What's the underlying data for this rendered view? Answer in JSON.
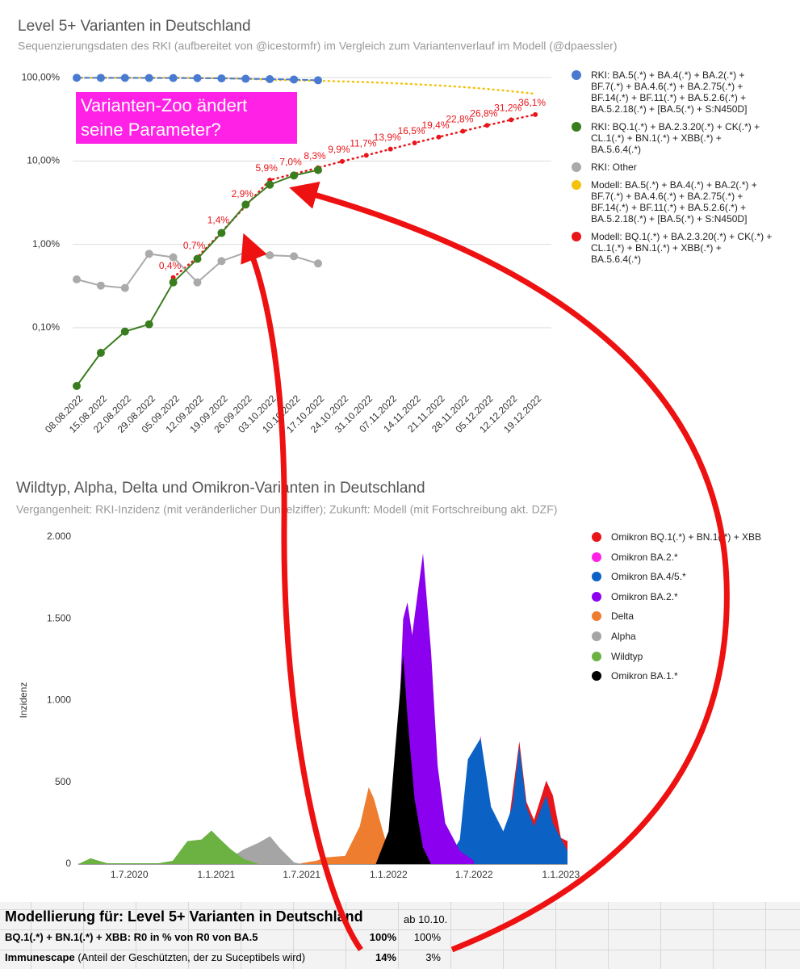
{
  "chart_data": [
    {
      "type": "line",
      "title": "Level 5+ Varianten in Deutschland",
      "subtitle": "Sequenzierungsdaten des RKI (aufbereitet von @icestormfr) im Vergleich zum Variantenverlauf im Modell (@dpaessler)",
      "annotation": "Varianten-Zoo ändert seine Parameter?",
      "log_scale": true,
      "grid": true,
      "legend": "right",
      "categories": [
        "08.08.2022",
        "15.08.2022",
        "22.08.2022",
        "29.08.2022",
        "05.09.2022",
        "12.09.2022",
        "19.09.2022",
        "26.09.2022",
        "03.10.2022",
        "10.10.2022",
        "17.10.2022",
        "24.10.2022",
        "31.10.2022",
        "07.11.2022",
        "14.11.2022",
        "21.11.2022",
        "28.11.2022",
        "05.12.2022",
        "12.12.2022",
        "19.12.2022"
      ],
      "ylim": [
        0.02,
        120
      ],
      "yticks": [
        {
          "value": 0.1,
          "label": "0,10%"
        },
        {
          "value": 1,
          "label": "1,00%"
        },
        {
          "value": 10,
          "label": "10,00%"
        },
        {
          "value": 100,
          "label": "100,00%"
        }
      ],
      "series": [
        {
          "name": "RKI: BA.5(.*) + BA.4(.*) + BA.2(.*) + BF.7(.*) + BA.4.6(.*) + BA.2.75(.*) + BF.14(.*) + BF.11(.*) + BA.5.2.6(.*) + BA.5.2.18(.*) + [BA.5(.*) + S:N450D]",
          "color": "#4a7bd0",
          "line_style": "dashed",
          "marker_size": 5,
          "values": [
            99.5,
            99.4,
            99.3,
            99.1,
            99.0,
            98.7,
            98.0,
            97.0,
            96.0,
            95.0,
            93.0,
            null,
            null,
            null,
            null,
            null,
            null,
            null,
            null,
            null
          ]
        },
        {
          "name": "RKI: BQ.1(.*) + BA.2.3.20(.*) + CK(.*) + CL.1(.*) + BN.1(.*) + XBB(.*) + BA.5.6.4(.*)",
          "color": "#3a7d1e",
          "line_style": "solid",
          "marker_size": 5,
          "values": [
            0.02,
            0.05,
            0.09,
            0.11,
            0.35,
            0.67,
            1.37,
            3.0,
            5.2,
            6.7,
            7.8,
            null,
            null,
            null,
            null,
            null,
            null,
            null,
            null,
            null
          ]
        },
        {
          "name": "RKI: Other",
          "color": "#aaaaaa",
          "line_style": "solid",
          "marker_size": 5,
          "values": [
            0.38,
            0.32,
            0.3,
            0.77,
            0.7,
            0.35,
            0.63,
            0.8,
            0.74,
            0.72,
            0.59,
            null,
            null,
            null,
            null,
            null,
            null,
            null,
            null,
            null
          ]
        },
        {
          "name": "Modell: BA.5(.*) + BA.4(.*) + BA.2(.*) + BF.7(.*) + BA.4.6(.*) + BA.2.75(.*) + BF.14(.*) + BF.11(.*) + BA.5.2.6(.*) + BA.5.2.18(.*) + [BA.5(.*) + S:N450D]",
          "color": "#f4c20d",
          "line_style": "dotted",
          "marker_size": 0,
          "values": [
            99.9,
            99.9,
            99.9,
            99.9,
            99.6,
            99.3,
            98.6,
            97.1,
            94.1,
            93.0,
            91.7,
            90.1,
            88.3,
            86.1,
            83.5,
            80.6,
            77.2,
            73.2,
            68.8,
            63.9
          ]
        },
        {
          "name": "Modell: BQ.1(.*) + BA.2.3.20(.*) + CK(.*) + CL.1(.*) + BN.1(.*) + XBB(.*) + BA.5.6.4(.*)",
          "color": "#e8161b",
          "line_style": "dotted",
          "marker_size": 3,
          "values": [
            null,
            null,
            null,
            null,
            0.4,
            0.7,
            1.4,
            2.9,
            5.9,
            7.0,
            8.3,
            9.9,
            11.7,
            13.9,
            16.5,
            19.4,
            22.8,
            26.8,
            31.2,
            36.1
          ],
          "value_labels": [
            null,
            null,
            null,
            null,
            "0,4%",
            "0,7%",
            "1,4%",
            "2,9%",
            "5,9%",
            "7,0%",
            "8,3%",
            "9,9%",
            "11,7%",
            "13,9%",
            "16,5%",
            "19,4%",
            "22,8%",
            "26,8%",
            "31,2%",
            "36,1%"
          ]
        }
      ]
    },
    {
      "type": "area",
      "title": "Wildtyp, Alpha, Delta und Omikron-Varianten in Deutschland",
      "subtitle": "Vergangenheit: RKI-Inzidenz (mit veränderlicher Dunkelziffer); Zukunft: Modell (mit Fortschreibung akt. DZF)",
      "y_label": "Inzidenz",
      "legend": "right",
      "grid": false,
      "xlim": [
        "15.3.2020",
        "15.1.2023"
      ],
      "xticks": [
        "1.7.2020",
        "1.1.2021",
        "1.7.2021",
        "1.1.2022",
        "1.7.2022",
        "1.1.2023"
      ],
      "ylim": [
        0,
        2000
      ],
      "yticks": [
        0,
        500,
        {
          "value": 1000,
          "label": "1.000"
        },
        {
          "value": 1500,
          "label": "1.500"
        },
        {
          "value": 2000,
          "label": "2.000"
        }
      ],
      "series": [
        {
          "name": "Omikron BQ.1(.*) + BN.1(.*) + XBB",
          "color": "#e8161b",
          "x": [
            "1.9.2022",
            "5.10.2022",
            "20.10.2022",
            "5.11.2022",
            "1.12.2022",
            "15.12.2022",
            "1.1.2023",
            "15.1.2023"
          ],
          "values": [
            0,
            750,
            380,
            270,
            510,
            420,
            160,
            140
          ]
        },
        {
          "name": "Omikron BA.2.*",
          "color": "#ff21e6",
          "x": [
            "1.6.2022",
            "15.7.2022",
            "10.8.2022"
          ],
          "values": [
            0,
            785,
            0
          ]
        },
        {
          "name": "Omikron BA.4/5.*",
          "color": "#0b62c4",
          "x": [
            "1.5.2022",
            "1.6.2022",
            "18.6.2022",
            "15.7.2022",
            "6.8.2022",
            "1.9.2022",
            "20.9.2022",
            "5.10.2022",
            "20.10.2022",
            "5.11.2022",
            "1.12.2022",
            "15.12.2022",
            "15.1.2023"
          ],
          "values": [
            0,
            150,
            640,
            770,
            350,
            200,
            350,
            720,
            350,
            230,
            420,
            250,
            80
          ]
        },
        {
          "name": "Omikron BA.2.*",
          "color": "#8b00ee",
          "x": [
            "1.1.2022",
            "15.1.2022",
            "1.2.2022",
            "10.2.2022",
            "20.2.2022",
            "15.3.2022",
            "1.4.2022",
            "15.4.2022",
            "1.5.2022",
            "1.6.2022",
            "1.7.2022"
          ],
          "values": [
            0,
            300,
            1500,
            1600,
            1400,
            1900,
            1300,
            600,
            250,
            80,
            20
          ]
        },
        {
          "name": "Delta",
          "color": "#ee7d30",
          "x": [
            "1.7.2021",
            "1.8.2021",
            "20.8.2021",
            "1.10.2021",
            "1.11.2021",
            "20.11.2021",
            "1.12.2021",
            "20.12.2021",
            "10.1.2022"
          ],
          "values": [
            5,
            20,
            40,
            50,
            230,
            470,
            400,
            200,
            0
          ]
        },
        {
          "name": "Alpha",
          "color": "#a5a5a5",
          "x": [
            "1.2.2021",
            "1.3.2021",
            "1.4.2021",
            "25.4.2021",
            "15.5.2021",
            "15.6.2021",
            "1.7.2021"
          ],
          "values": [
            40,
            90,
            130,
            170,
            100,
            10,
            0
          ]
        },
        {
          "name": "Wildtyp",
          "color": "#6bb243",
          "x": [
            "15.3.2020",
            "10.4.2020",
            "15.5.2020",
            "1.9.2020",
            "1.10.2020",
            "1.11.2020",
            "1.12.2020",
            "22.12.2020",
            "10.1.2021",
            "1.2.2021",
            "1.3.2021",
            "1.4.2021"
          ],
          "values": [
            0,
            35,
            5,
            5,
            20,
            140,
            150,
            205,
            150,
            90,
            30,
            0
          ]
        },
        {
          "name": "Omikron BA.1.*",
          "color": "#000000",
          "x": [
            "5.12.2021",
            "1.1.2022",
            "15.1.2022",
            "1.2.2022",
            "10.2.2022",
            "25.2.2022",
            "15.3.2022",
            "1.4.2022"
          ],
          "values": [
            0,
            200,
            700,
            1280,
            900,
            400,
            100,
            0
          ]
        }
      ]
    }
  ],
  "table": {
    "rows": [
      [
        "Modellierung für: Level 5+ Varianten in Deutschland",
        "ab 10.10."
      ],
      [
        "BQ.1(.*) + BN.1(.*) + XBB: R0 in % von R0 von BA.5",
        "100%",
        "100%"
      ],
      [
        {
          "bold": "Immunescape",
          "text": " (Anteil der Geschützten, der zu Suceptibels wird)"
        },
        "14%",
        "3%"
      ]
    ]
  }
}
